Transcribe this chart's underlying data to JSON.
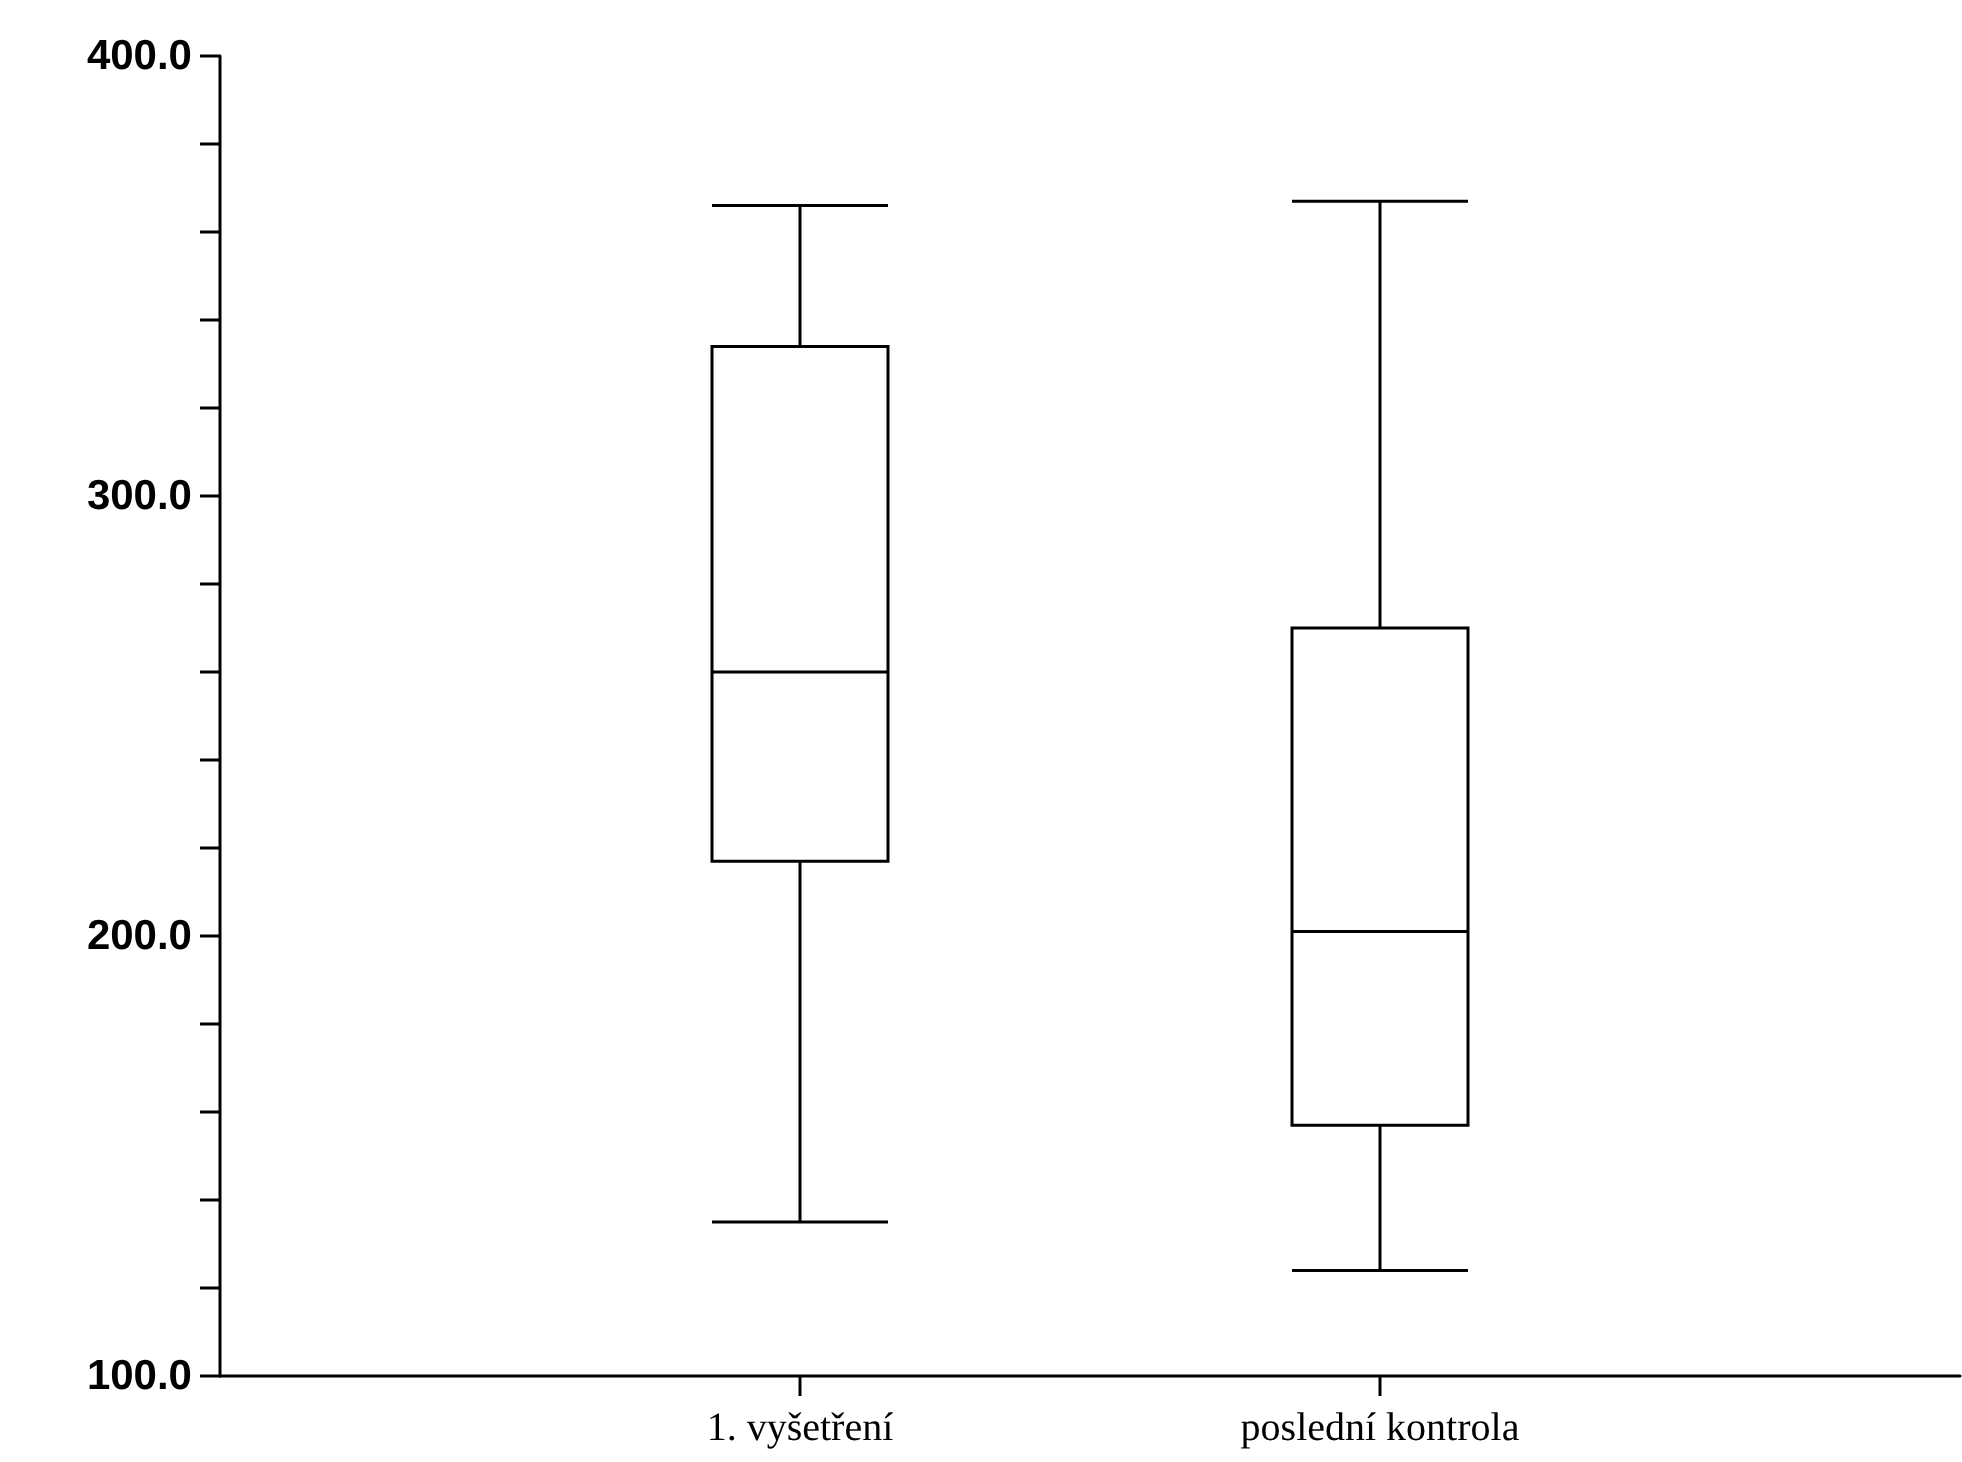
{
  "chart_data": {
    "type": "box",
    "categories": [
      "1. vyšetření",
      "poslední kontrola"
    ],
    "boxes": [
      {
        "low": 135,
        "q1": 217,
        "median": 260,
        "q3": 334,
        "high": 366
      },
      {
        "low": 124,
        "q1": 157,
        "median": 201,
        "q3": 270,
        "high": 367
      }
    ],
    "ylim": [
      100,
      400
    ],
    "yticks": [
      {
        "value": 100,
        "label": "100.0"
      },
      {
        "value": 120,
        "label": null
      },
      {
        "value": 140,
        "label": null
      },
      {
        "value": 160,
        "label": null
      },
      {
        "value": 180,
        "label": null
      },
      {
        "value": 200,
        "label": "200.0"
      },
      {
        "value": 220,
        "label": null
      },
      {
        "value": 240,
        "label": null
      },
      {
        "value": 260,
        "label": null
      },
      {
        "value": 280,
        "label": null
      },
      {
        "value": 300,
        "label": "300.0"
      },
      {
        "value": 320,
        "label": null
      },
      {
        "value": 340,
        "label": null
      },
      {
        "value": 360,
        "label": null
      },
      {
        "value": 380,
        "label": null
      },
      {
        "value": 400,
        "label": "400.0"
      }
    ],
    "grid": false
  }
}
